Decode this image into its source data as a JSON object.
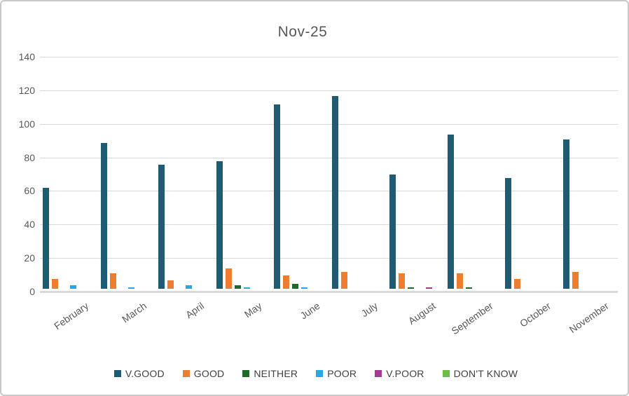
{
  "chart_data": {
    "type": "bar",
    "title": "Nov-25",
    "categories": [
      "February",
      "March",
      "April",
      "May",
      "June",
      "July",
      "August",
      "September",
      "October",
      "November"
    ],
    "series": [
      {
        "name": "V.GOOD",
        "color": "#1F5C73",
        "values": [
          60,
          87,
          74,
          76,
          110,
          115,
          68,
          92,
          66,
          89
        ]
      },
      {
        "name": "GOOD",
        "color": "#ED7D31",
        "values": [
          6,
          9,
          5,
          12,
          8,
          10,
          9,
          9,
          6,
          10
        ]
      },
      {
        "name": "NEITHER",
        "color": "#1E6B29",
        "values": [
          0,
          0,
          0,
          2,
          3,
          0,
          1,
          1,
          0,
          0
        ]
      },
      {
        "name": "POOR",
        "color": "#29A8DF",
        "values": [
          2,
          1,
          2,
          1,
          1,
          0,
          0,
          0,
          0,
          0
        ]
      },
      {
        "name": "V.POOR",
        "color": "#A43A97",
        "values": [
          0,
          0,
          0,
          0,
          0,
          0,
          1,
          0,
          0,
          0
        ]
      },
      {
        "name": "DON'T KNOW",
        "color": "#6FBE44",
        "values": [
          0,
          0,
          0,
          0,
          0,
          0,
          0,
          0,
          0,
          0
        ]
      }
    ],
    "ylim": [
      0,
      140
    ],
    "yticks": [
      0,
      20,
      40,
      60,
      80,
      100,
      120,
      140
    ],
    "grid": true,
    "legend_position": "bottom",
    "gridline_color": "#D9D9D9",
    "axis_text_color": "#595959",
    "title_color": "#595959"
  }
}
